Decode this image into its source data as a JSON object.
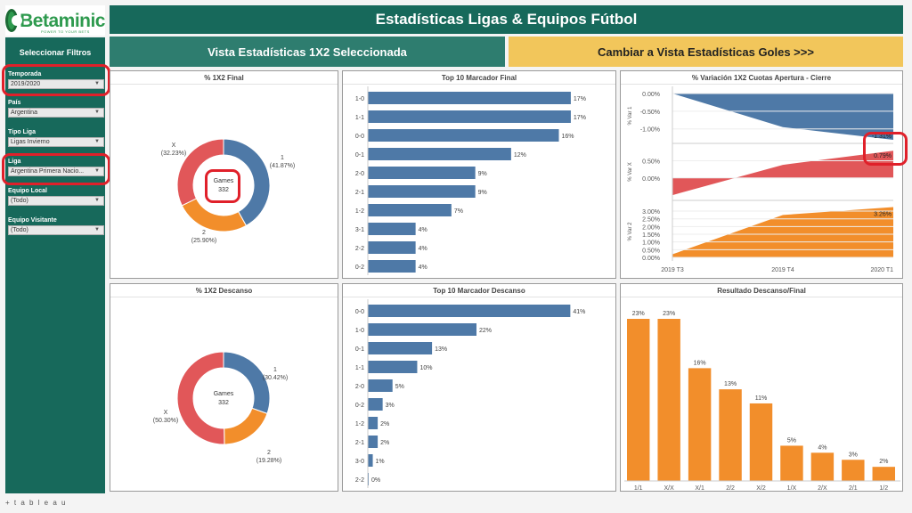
{
  "header": {
    "logo_text": "Betaminic",
    "logo_tagline": "POWER TO YOUR BETS",
    "title": "Estadísticas Ligas & Equipos Fútbol"
  },
  "sidebar": {
    "title": "Seleccionar Filtros",
    "filters": [
      {
        "label": "Temporada",
        "value": "2019/2020"
      },
      {
        "label": "País",
        "value": "Argentina"
      },
      {
        "label": "Tipo Liga",
        "value": "Ligas Invierno"
      },
      {
        "label": "Liga",
        "value": "Argentina Primera Nacio..."
      },
      {
        "label": "Equipo Local",
        "value": "(Todo)"
      },
      {
        "label": "Equipo Visitante",
        "value": "(Todo)"
      }
    ]
  },
  "tabs": {
    "active": "Vista Estadísticas 1X2 Seleccionada",
    "switch": "Cambiar a Vista Estadísticas Goles >>>"
  },
  "footer": {
    "brand": "+ t a b l e a u"
  },
  "colors": {
    "blue": "#4e79a7",
    "orange": "#f28e2b",
    "red": "#e15759",
    "teal": "#17695b",
    "yellow": "#f2c65b",
    "highlight": "#e0202a"
  },
  "charts": {
    "final_donut": {
      "title": "% 1X2 Final",
      "center_label": "Games",
      "center_value": "332",
      "slices": [
        {
          "name": "1",
          "pct": "(41.87%)",
          "value": 41.87,
          "color": "#4e79a7"
        },
        {
          "name": "2",
          "pct": "(25.90%)",
          "value": 25.9,
          "color": "#f28e2b"
        },
        {
          "name": "X",
          "pct": "(32.23%)",
          "value": 32.23,
          "color": "#e15759"
        }
      ]
    },
    "half_donut": {
      "title": "% 1X2 Descanso",
      "center_label": "Games",
      "center_value": "332",
      "slices": [
        {
          "name": "1",
          "pct": "(30.42%)",
          "value": 30.42,
          "color": "#4e79a7"
        },
        {
          "name": "2",
          "pct": "(19.28%)",
          "value": 19.28,
          "color": "#f28e2b"
        },
        {
          "name": "X",
          "pct": "(50.30%)",
          "value": 50.3,
          "color": "#e15759"
        }
      ]
    },
    "top10_final": {
      "title": "Top 10 Marcador Final",
      "categories": [
        "1-0",
        "1-1",
        "0-0",
        "0-1",
        "2-0",
        "2-1",
        "1-2",
        "3-1",
        "2-2",
        "0-2"
      ],
      "values": [
        17,
        17,
        16,
        12,
        9,
        9,
        7,
        4,
        4,
        4
      ],
      "labels": [
        "17%",
        "17%",
        "16%",
        "12%",
        "9%",
        "9%",
        "7%",
        "4%",
        "4%",
        "4%"
      ]
    },
    "top10_half": {
      "title": "Top 10 Marcador Descanso",
      "categories": [
        "0-0",
        "1-0",
        "0-1",
        "1-1",
        "2-0",
        "0-2",
        "1-2",
        "2-1",
        "3-0",
        "2-2"
      ],
      "values": [
        41,
        22,
        13,
        10,
        5,
        3,
        2,
        2,
        1,
        0
      ],
      "labels": [
        "41%",
        "22%",
        "13%",
        "10%",
        "5%",
        "3%",
        "2%",
        "2%",
        "1%",
        "0%"
      ]
    },
    "variation": {
      "title": "% Variación 1X2 Cuotas Apertura - Cierre",
      "x": [
        "2019 T3",
        "2019 T4",
        "2020 T1"
      ],
      "series": [
        {
          "name": "% Var 1",
          "values": [
            0.0,
            -0.95,
            -1.31
          ],
          "ticks": [
            "0.00%",
            "-0.50%",
            "-1.00%"
          ],
          "tick_values": [
            0,
            -0.5,
            -1.0
          ],
          "ylim": [
            -1.31,
            0.05
          ],
          "end_label": "-1.31%",
          "color": "#4e79a7"
        },
        {
          "name": "% Var X",
          "values": [
            -0.5,
            0.38,
            0.79
          ],
          "ticks": [
            "0.50%",
            "0.00%"
          ],
          "tick_values": [
            0.5,
            0.0
          ],
          "ylim": [
            -0.55,
            0.9
          ],
          "end_label": "0.79%",
          "color": "#e15759"
        },
        {
          "name": "% Var 2",
          "values": [
            0.2,
            2.75,
            3.26
          ],
          "ticks": [
            "3.00%",
            "2.50%",
            "2.00%",
            "1.50%",
            "1.00%",
            "0.50%",
            "0.00%"
          ],
          "tick_values": [
            3.0,
            2.5,
            2.0,
            1.5,
            1.0,
            0.5,
            0.0
          ],
          "ylim": [
            0,
            3.35
          ],
          "end_label": "3.26%",
          "color": "#f28e2b"
        }
      ]
    },
    "ht_ft": {
      "title": "Resultado Descanso/Final",
      "categories": [
        "1/1",
        "X/X",
        "X/1",
        "2/2",
        "X/2",
        "1/X",
        "2/X",
        "2/1",
        "1/2"
      ],
      "values": [
        23,
        23,
        16,
        13,
        11,
        5,
        4,
        3,
        2
      ],
      "labels": [
        "23%",
        "23%",
        "16%",
        "13%",
        "11%",
        "5%",
        "4%",
        "3%",
        "2%"
      ]
    }
  }
}
